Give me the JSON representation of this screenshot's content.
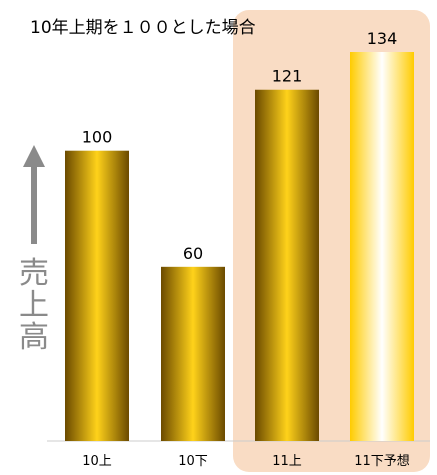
{
  "chart_data": {
    "type": "bar",
    "title": "10年上期を１００とした場合",
    "ylabel": "売上高",
    "categories": [
      "10上",
      "10下",
      "11上",
      "11下予想"
    ],
    "values": [
      100,
      60,
      121,
      134
    ],
    "data_labels": [
      "100",
      "60",
      "121",
      "134"
    ],
    "ylim": [
      0,
      134
    ],
    "highlight_categories": [
      "11上",
      "11下予想"
    ],
    "forecast_category": "11下予想",
    "grid": false,
    "legend": "none"
  },
  "colors": {
    "bar_dark": "#6b4a00",
    "bar_mid": "#c9a000",
    "bar_bright": "#ffd21a",
    "forecast_edge": "#ffcc00",
    "forecast_center": "#ffffff",
    "highlight_bg": "#f9dcc4",
    "axis_arrow": "#8a8a8a",
    "baseline": "#cccccc"
  }
}
